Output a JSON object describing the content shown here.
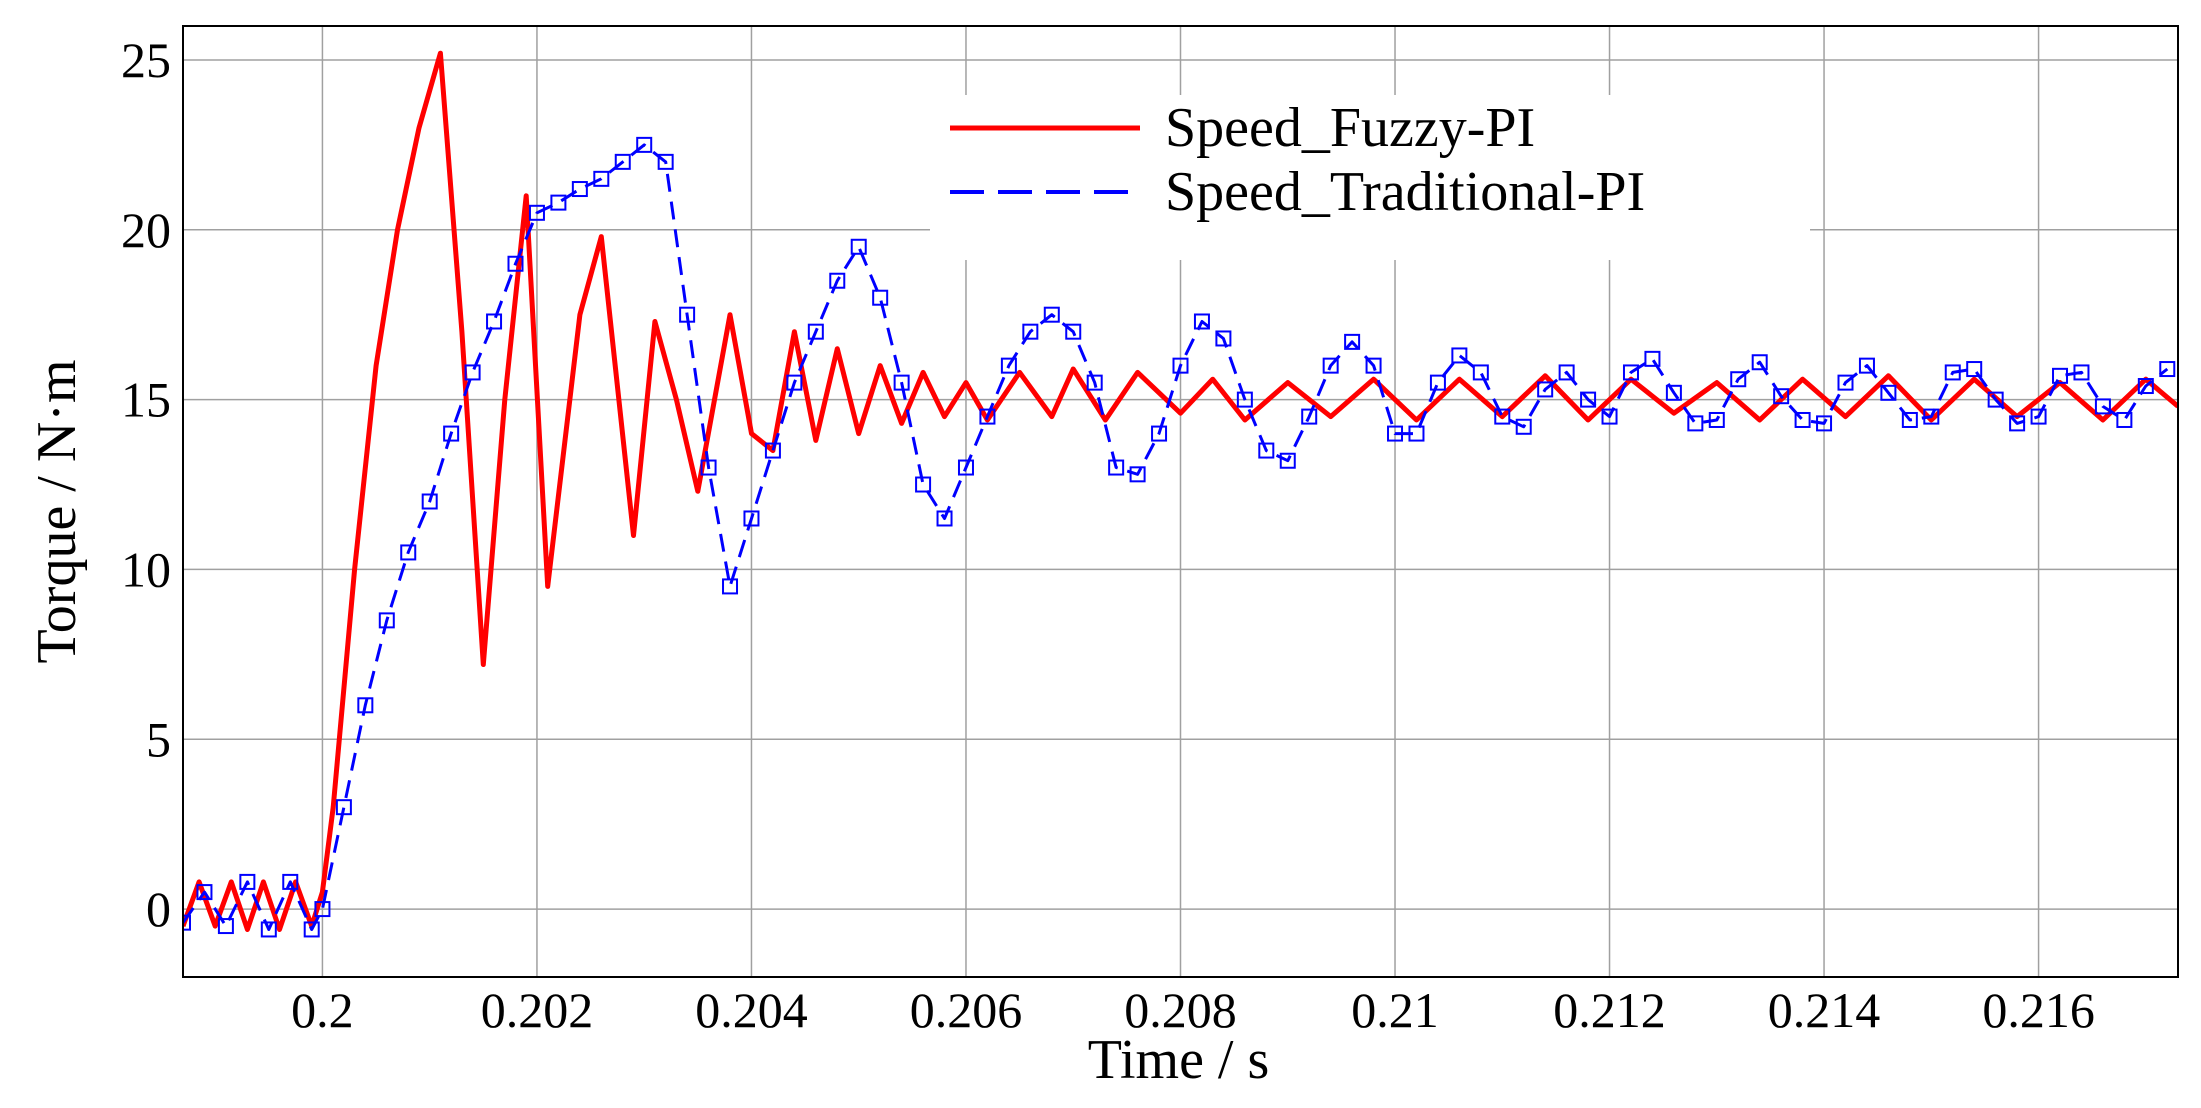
{
  "chart_data": {
    "type": "line",
    "title": "",
    "xlabel": "Time  / s",
    "ylabel": "Torque  / N·m",
    "xlim": [
      0.1987,
      0.2173
    ],
    "ylim": [
      -2,
      26
    ],
    "grid": true,
    "legend_position": "top-right",
    "x_ticks": [
      0.2,
      0.202,
      0.204,
      0.206,
      0.208,
      0.21,
      0.212,
      0.214,
      0.216
    ],
    "x_tick_labels": [
      "0.2",
      "0.202",
      "0.204",
      "0.206",
      "0.208",
      "0.21",
      "0.212",
      "0.214",
      "0.216"
    ],
    "y_ticks": [
      0,
      5,
      10,
      15,
      20,
      25
    ],
    "y_tick_labels": [
      "0",
      "5",
      "10",
      "15",
      "20",
      "25"
    ],
    "series": [
      {
        "name": "Speed_Fuzzy-PI",
        "color": "#ff0000",
        "style": "solid",
        "marker": "none",
        "x": [
          0.1987,
          0.19885,
          0.199,
          0.19915,
          0.1993,
          0.19945,
          0.1996,
          0.19975,
          0.1999,
          0.2,
          0.2001,
          0.2003,
          0.2005,
          0.2007,
          0.2009,
          0.2011,
          0.2013,
          0.2015,
          0.2017,
          0.2019,
          0.2021,
          0.2024,
          0.2026,
          0.2029,
          0.2031,
          0.2033,
          0.2035,
          0.2038,
          0.204,
          0.2042,
          0.2044,
          0.2046,
          0.2048,
          0.205,
          0.2052,
          0.2054,
          0.2056,
          0.2058,
          0.206,
          0.2062,
          0.2065,
          0.2068,
          0.207,
          0.2073,
          0.2076,
          0.208,
          0.2083,
          0.2086,
          0.209,
          0.2094,
          0.2098,
          0.2102,
          0.2106,
          0.211,
          0.2114,
          0.2118,
          0.2122,
          0.2126,
          0.213,
          0.2134,
          0.2138,
          0.2142,
          0.2146,
          0.215,
          0.2154,
          0.2158,
          0.2162,
          0.2166,
          0.217,
          0.2173
        ],
        "values": [
          -0.5,
          0.8,
          -0.5,
          0.8,
          -0.6,
          0.8,
          -0.6,
          0.8,
          -0.5,
          0.5,
          3.0,
          10.0,
          16.0,
          20.0,
          23.0,
          25.2,
          17.0,
          7.2,
          15.0,
          21.0,
          9.5,
          17.5,
          19.8,
          11.0,
          17.3,
          15.0,
          12.3,
          17.5,
          14.0,
          13.5,
          17.0,
          13.8,
          16.5,
          14.0,
          16.0,
          14.3,
          15.8,
          14.5,
          15.5,
          14.4,
          15.8,
          14.5,
          15.9,
          14.4,
          15.8,
          14.6,
          15.6,
          14.4,
          15.5,
          14.5,
          15.6,
          14.4,
          15.6,
          14.5,
          15.7,
          14.4,
          15.6,
          14.6,
          15.5,
          14.4,
          15.6,
          14.5,
          15.7,
          14.4,
          15.6,
          14.5,
          15.5,
          14.4,
          15.6,
          14.8
        ]
      },
      {
        "name": "Speed_Traditional-PI",
        "color": "#0000ff",
        "style": "dashed",
        "marker": "square",
        "x": [
          0.1987,
          0.1989,
          0.1991,
          0.1993,
          0.1995,
          0.1997,
          0.1999,
          0.2,
          0.2002,
          0.2004,
          0.2006,
          0.2008,
          0.201,
          0.2012,
          0.2014,
          0.2016,
          0.2018,
          0.202,
          0.2022,
          0.2024,
          0.2026,
          0.2028,
          0.203,
          0.2032,
          0.2034,
          0.2036,
          0.2038,
          0.204,
          0.2042,
          0.2044,
          0.2046,
          0.2048,
          0.205,
          0.2052,
          0.2054,
          0.2056,
          0.2058,
          0.206,
          0.2062,
          0.2064,
          0.2066,
          0.2068,
          0.207,
          0.2072,
          0.2074,
          0.2076,
          0.2078,
          0.208,
          0.2082,
          0.2084,
          0.2086,
          0.2088,
          0.209,
          0.2092,
          0.2094,
          0.2096,
          0.2098,
          0.21,
          0.2102,
          0.2104,
          0.2106,
          0.2108,
          0.211,
          0.2112,
          0.2114,
          0.2116,
          0.2118,
          0.212,
          0.2122,
          0.2124,
          0.2126,
          0.2128,
          0.213,
          0.2132,
          0.2134,
          0.2136,
          0.2138,
          0.214,
          0.2142,
          0.2144,
          0.2146,
          0.2148,
          0.215,
          0.2152,
          0.2154,
          0.2156,
          0.2158,
          0.216,
          0.2162,
          0.2164,
          0.2166,
          0.2168,
          0.217,
          0.2172
        ],
        "values": [
          -0.4,
          0.5,
          -0.5,
          0.8,
          -0.6,
          0.8,
          -0.6,
          0.0,
          3.0,
          6.0,
          8.5,
          10.5,
          12.0,
          14.0,
          15.8,
          17.3,
          19.0,
          20.5,
          20.8,
          21.2,
          21.5,
          22.0,
          22.5,
          22.0,
          17.5,
          13.0,
          9.5,
          11.5,
          13.5,
          15.5,
          17.0,
          18.5,
          19.5,
          18.0,
          15.5,
          12.5,
          11.5,
          13.0,
          14.5,
          16.0,
          17.0,
          17.5,
          17.0,
          15.5,
          13.0,
          12.8,
          14.0,
          16.0,
          17.3,
          16.8,
          15.0,
          13.5,
          13.2,
          14.5,
          16.0,
          16.7,
          16.0,
          14.0,
          14.0,
          15.5,
          16.3,
          15.8,
          14.5,
          14.2,
          15.3,
          15.8,
          15.0,
          14.5,
          15.8,
          16.2,
          15.2,
          14.3,
          14.4,
          15.6,
          16.1,
          15.1,
          14.4,
          14.3,
          15.5,
          16.0,
          15.2,
          14.4,
          14.5,
          15.8,
          15.9,
          15.0,
          14.3,
          14.5,
          15.7,
          15.8,
          14.8,
          14.4,
          15.4,
          15.9
        ]
      }
    ]
  }
}
